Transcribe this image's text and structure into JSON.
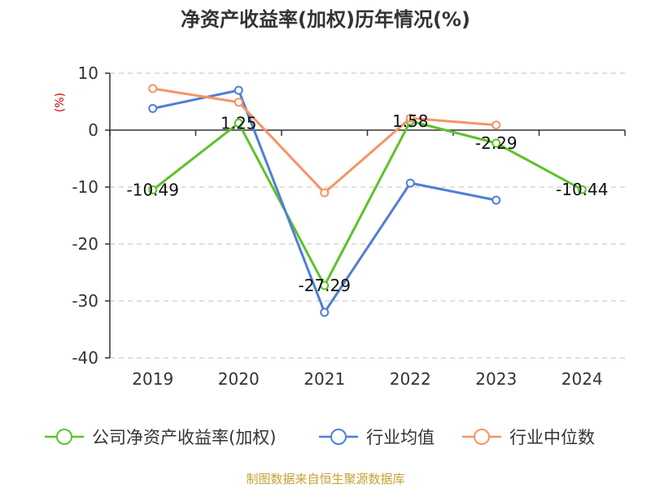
{
  "chart_data": {
    "type": "line",
    "title": "净资产收益率(加权)历年情况(%)",
    "ylabel": "(%)",
    "xlabel": "",
    "categories": [
      "2019",
      "2020",
      "2021",
      "2022",
      "2023",
      "2024"
    ],
    "ylim": [
      -40,
      10
    ],
    "yticks": [
      10,
      0,
      -10,
      -20,
      -30,
      -40
    ],
    "grid": true,
    "legend_position": "bottom",
    "series": [
      {
        "name": "公司净资产收益率(加权)",
        "color": "#5cc22c",
        "values": [
          -10.49,
          1.25,
          -27.29,
          1.58,
          -2.29,
          -10.44
        ],
        "labels": [
          "-10.49",
          "1.25",
          "-27.29",
          "1.58",
          "-2.29",
          "-10.44"
        ]
      },
      {
        "name": "行业均值",
        "color": "#4f7fd4",
        "values": [
          3.8,
          7.0,
          -32.0,
          -9.3,
          -12.3,
          null
        ]
      },
      {
        "name": "行业中位数",
        "color": "#f79464",
        "values": [
          7.3,
          4.9,
          -11.0,
          2.1,
          0.9,
          null
        ]
      }
    ]
  },
  "source_text": "制图数据来自恒生聚源数据库"
}
